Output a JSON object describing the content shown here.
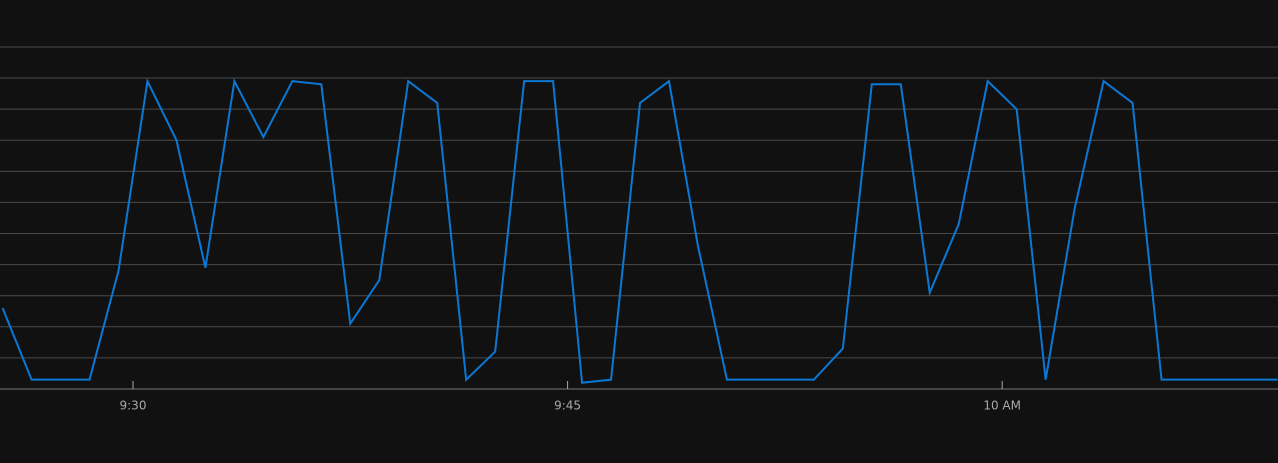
{
  "chart_data": {
    "type": "line",
    "x": [
      565.5,
      566.5,
      567.5,
      568.5,
      569.5,
      570.5,
      571.5,
      572.5,
      573.5,
      574.5,
      575.5,
      576.5,
      577.5,
      578.5,
      579.5,
      580.5,
      581.5,
      582.5,
      583.5,
      584.5,
      585.5,
      586.5,
      587.5,
      588.5,
      589.5,
      590.5,
      591.5,
      592.5,
      593.5,
      594.5,
      595.5,
      596.5,
      597.5,
      598.5,
      599.5,
      600.5,
      601.5,
      602.5,
      603.5,
      604.5,
      605.5,
      606.5,
      607.5,
      608.5,
      609.5
    ],
    "series": [
      {
        "color": "#0a78d4",
        "values": [
          2.6,
          0.3,
          0.3,
          0.3,
          3.8,
          9.9,
          8.0,
          3.9,
          9.9,
          8.1,
          9.9,
          9.8,
          2.1,
          3.5,
          9.9,
          9.2,
          0.3,
          1.2,
          9.9,
          9.9,
          0.2,
          0.3,
          9.2,
          9.9,
          4.6,
          0.3,
          0.3,
          0.3,
          0.3,
          1.3,
          9.8,
          9.8,
          3.1,
          5.3,
          9.9,
          9.0,
          0.3,
          5.8,
          9.9,
          9.2,
          0.3,
          0.3,
          0.3,
          0.3,
          0.3
        ]
      }
    ],
    "xlim": [
      565.41,
      609.52
    ],
    "xticks": [
      {
        "value": 570,
        "label": "9:30"
      },
      {
        "value": 585,
        "label": "9:45"
      },
      {
        "value": 600,
        "label": "10 AM"
      }
    ],
    "ylim": [
      0,
      12.51
    ],
    "yticks": [
      0,
      1,
      2,
      3,
      4,
      5,
      6,
      7,
      8,
      9,
      10,
      11
    ],
    "grid": true
  }
}
